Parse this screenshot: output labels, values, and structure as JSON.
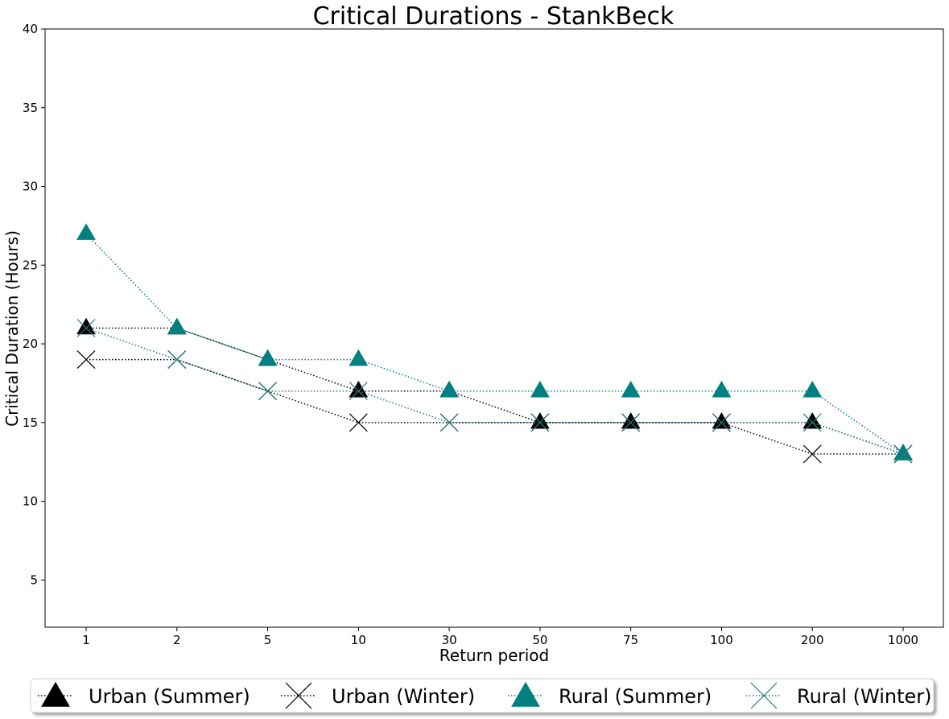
{
  "chart_data": {
    "type": "line",
    "title": "Critical Durations - StankBeck",
    "xlabel": "Return period",
    "ylabel": "Critical Duration (Hours)",
    "categories": [
      "1",
      "2",
      "5",
      "10",
      "30",
      "50",
      "75",
      "100",
      "200",
      "1000"
    ],
    "ylim": [
      2,
      40
    ],
    "yticks": [
      5,
      10,
      15,
      20,
      25,
      30,
      35,
      40
    ],
    "grid": false,
    "legend_position": "bottom",
    "series": [
      {
        "name": "Urban (Summer)",
        "marker": "triangle",
        "color": "#000000",
        "values": [
          21,
          21,
          19,
          17,
          17,
          15,
          15,
          15,
          15,
          13
        ]
      },
      {
        "name": "Urban (Winter)",
        "marker": "x",
        "color": "#000000",
        "values": [
          19,
          19,
          17,
          15,
          15,
          15,
          15,
          15,
          13,
          13
        ]
      },
      {
        "name": "Rural (Summer)",
        "marker": "triangle",
        "color": "#008080",
        "values": [
          27,
          21,
          19,
          19,
          17,
          17,
          17,
          17,
          17,
          13
        ]
      },
      {
        "name": "Rural (Winter)",
        "marker": "x",
        "color": "#2a7a7a",
        "values": [
          21,
          19,
          17,
          17,
          15,
          15,
          15,
          15,
          15,
          13
        ]
      }
    ]
  }
}
